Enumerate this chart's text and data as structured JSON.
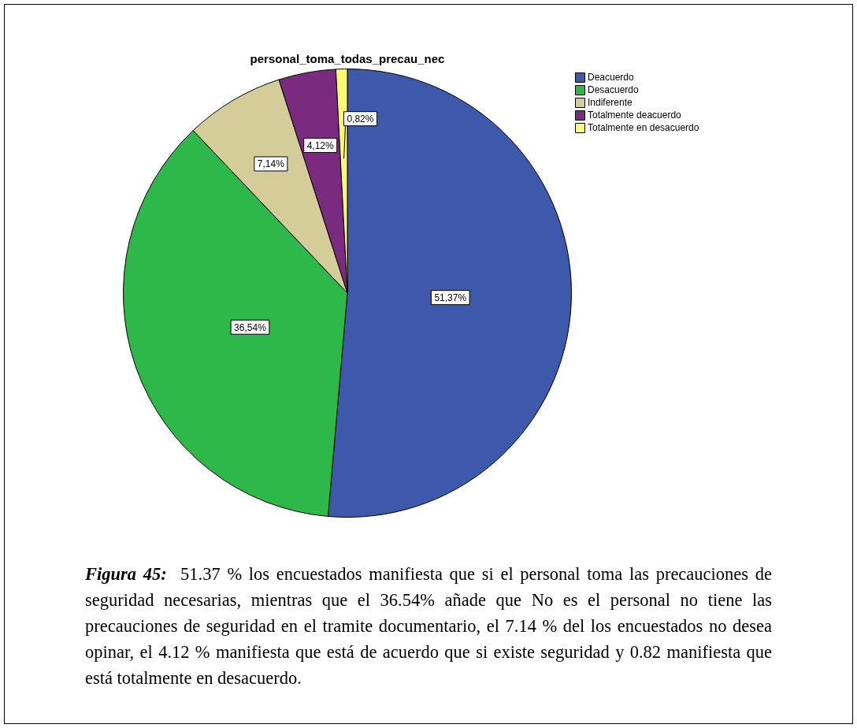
{
  "chart_data": {
    "type": "pie",
    "title": "personal_toma_todas_precau_nec",
    "categories": [
      "Deacuerdo",
      "Desacuerdo",
      "Indiferente",
      "Totalmente deacuerdo",
      "Totalmente en desacuerdo"
    ],
    "values": [
      51.37,
      36.54,
      7.14,
      4.12,
      0.82
    ],
    "colors": [
      "#3e58ac",
      "#2eb84a",
      "#d4cd9a",
      "#7b2b7f",
      "#fbf873"
    ],
    "value_labels": [
      "51,37%",
      "36,54%",
      "7,14%",
      "4,12%",
      "0,82%"
    ],
    "legend": "top right",
    "annotations": [
      "Figura 45:",
      "51.37 % los encuestados manifiesta que si el personal toma las precauciones de seguridad necesarias, mientras que el 36.54% añade que No es el personal no tiene  las precauciones de seguridad en el tramite documentario, el 7.14 %  del los encuestados no desea opinar,  el 4.12 % manifiesta que está de acuerdo que si existe seguridad y 0.82 manifiesta que está totalmente en desacuerdo."
    ]
  }
}
